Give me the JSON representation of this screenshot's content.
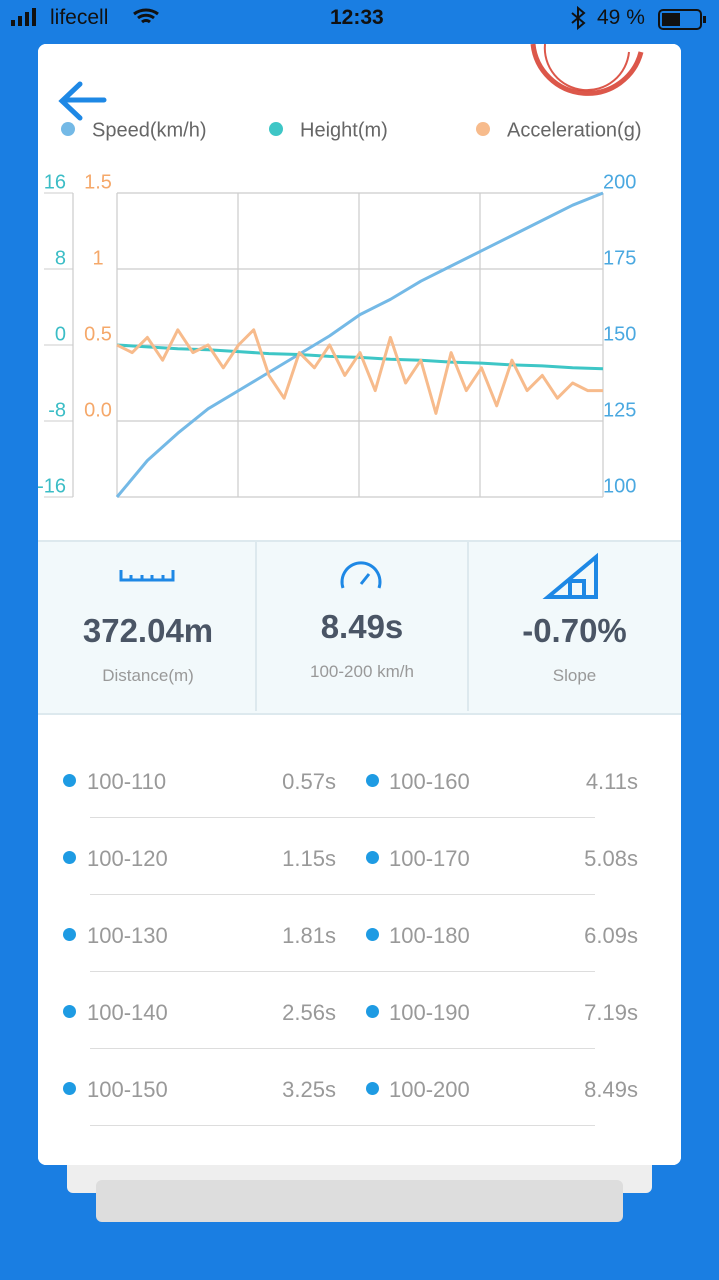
{
  "status_bar": {
    "carrier": "lifecell",
    "time": "12:33",
    "battery": "49 %"
  },
  "chart_data": {
    "type": "line",
    "series": [
      {
        "name": "Speed(km/h)",
        "color": "#74b9e6",
        "axis": "y2",
        "values": [
          100,
          112,
          121,
          129,
          135,
          141,
          147,
          153,
          160,
          165,
          171,
          176,
          181,
          186,
          191,
          196,
          200
        ]
      },
      {
        "name": "Height(m)",
        "color": "#3ec6c6",
        "axis": "y",
        "values": [
          0,
          -0.2,
          -0.4,
          -0.5,
          -0.7,
          -0.9,
          -1.0,
          -1.2,
          -1.3,
          -1.5,
          -1.6,
          -1.8,
          -1.9,
          -2.1,
          -2.2,
          -2.4,
          -2.5
        ]
      },
      {
        "name": "Acceleration(g)",
        "color": "#f7bb8c",
        "axis": "y3",
        "values": [
          0.5,
          0.45,
          0.55,
          0.4,
          0.6,
          0.45,
          0.5,
          0.35,
          0.5,
          0.6,
          0.3,
          0.15,
          0.45,
          0.35,
          0.5,
          0.3,
          0.45,
          0.2,
          0.55,
          0.25,
          0.4,
          0.05,
          0.45,
          0.2,
          0.35,
          0.1,
          0.4,
          0.2,
          0.3,
          0.15,
          0.25,
          0.2,
          0.2
        ]
      }
    ],
    "ylim": [
      -16,
      16
    ],
    "yticks": [
      16,
      8,
      0,
      -8,
      -16
    ],
    "y2lim": [
      100,
      200
    ],
    "y2ticks": [
      200,
      175,
      150,
      125,
      100
    ],
    "y3lim": [
      -0.5,
      1.5
    ],
    "y3ticks": [
      1.5,
      1,
      0.5,
      {
        "value": 0,
        "label": "0.0"
      }
    ],
    "grid": true
  },
  "metrics": [
    {
      "value": "372.04m",
      "label": "Distance(m)"
    },
    {
      "value": "8.49s",
      "label": "100-200 km/h"
    },
    {
      "value": "-0.70%",
      "label": "Slope"
    }
  ],
  "splits": [
    {
      "range": "100-110",
      "time": "0.57s"
    },
    {
      "range": "100-120",
      "time": "1.15s"
    },
    {
      "range": "100-130",
      "time": "1.81s"
    },
    {
      "range": "100-140",
      "time": "2.56s"
    },
    {
      "range": "100-150",
      "time": "3.25s"
    },
    {
      "range": "100-160",
      "time": "4.11s"
    },
    {
      "range": "100-170",
      "time": "5.08s"
    },
    {
      "range": "100-180",
      "time": "6.09s"
    },
    {
      "range": "100-190",
      "time": "7.19s"
    },
    {
      "range": "100-200",
      "time": "8.49s"
    }
  ]
}
